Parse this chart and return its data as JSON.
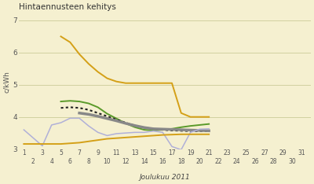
{
  "title": "Hintaennusteen kehitys",
  "xlabel": "Joulukuu 2011",
  "ylabel": "c/kWh",
  "background_color": "#f5f0d0",
  "ylim": [
    3.0,
    7.2
  ],
  "xlim": [
    0.5,
    32
  ],
  "yticks": [
    3,
    4,
    5,
    6,
    7
  ],
  "xticks_odd": [
    1,
    3,
    5,
    7,
    9,
    11,
    13,
    15,
    17,
    19,
    21,
    23,
    25,
    27,
    29,
    31
  ],
  "xticks_even": [
    2,
    4,
    6,
    8,
    10,
    12,
    14,
    16,
    18,
    20,
    22,
    24,
    26,
    28,
    30
  ],
  "lines": {
    "yellow_high": {
      "color": "#d4a017",
      "x": [
        5,
        6,
        7,
        8,
        9,
        10,
        11,
        12,
        13,
        14,
        15,
        16,
        17,
        18,
        19,
        20,
        21
      ],
      "y": [
        6.5,
        6.32,
        5.95,
        5.65,
        5.4,
        5.2,
        5.1,
        5.05,
        5.05,
        5.05,
        5.05,
        5.05,
        5.05,
        4.12,
        4.0,
        4.0,
        4.0
      ],
      "linewidth": 1.4
    },
    "green": {
      "color": "#5a9a2a",
      "x": [
        5,
        6,
        7,
        8,
        9,
        10,
        11,
        12,
        13,
        14,
        15,
        16,
        17,
        18,
        19,
        20,
        21
      ],
      "y": [
        4.48,
        4.5,
        4.48,
        4.42,
        4.3,
        4.1,
        3.95,
        3.8,
        3.68,
        3.6,
        3.58,
        3.6,
        3.63,
        3.68,
        3.72,
        3.75,
        3.78
      ],
      "linewidth": 1.4
    },
    "black_dotted": {
      "color": "#222222",
      "x": [
        5,
        6,
        7,
        8,
        9,
        10,
        11,
        12,
        13,
        14,
        15,
        16,
        17,
        18,
        19,
        20,
        21
      ],
      "y": [
        4.28,
        4.3,
        4.28,
        4.22,
        4.12,
        4.02,
        3.92,
        3.82,
        3.73,
        3.67,
        3.63,
        3.6,
        3.58,
        3.57,
        3.56,
        3.56,
        3.56
      ],
      "linewidth": 1.5,
      "linestyle": "dotted"
    },
    "gray": {
      "color": "#888888",
      "x": [
        7,
        8,
        9,
        10,
        11,
        12,
        13,
        14,
        15,
        16,
        17,
        18,
        19,
        20,
        21
      ],
      "y": [
        4.12,
        4.08,
        4.02,
        3.95,
        3.88,
        3.8,
        3.73,
        3.67,
        3.63,
        3.62,
        3.61,
        3.6,
        3.59,
        3.58,
        3.57
      ],
      "linewidth": 2.5
    },
    "purple": {
      "color": "#b0b0d8",
      "x": [
        1,
        2,
        3,
        4,
        5,
        6,
        7,
        8,
        9,
        10,
        11,
        12,
        13,
        14,
        15,
        16,
        17,
        18,
        19,
        20,
        21
      ],
      "y": [
        3.6,
        3.35,
        3.1,
        3.75,
        3.82,
        3.96,
        3.96,
        3.72,
        3.52,
        3.42,
        3.48,
        3.5,
        3.52,
        3.52,
        3.56,
        3.52,
        3.08,
        2.98,
        3.52,
        3.62,
        3.63
      ],
      "linewidth": 1.1
    },
    "yellow_low": {
      "color": "#d4a017",
      "x": [
        1,
        2,
        3,
        4,
        5,
        6,
        7,
        8,
        9,
        10,
        11,
        12,
        13,
        14,
        15,
        16,
        17,
        18,
        19,
        20,
        21
      ],
      "y": [
        3.16,
        3.16,
        3.16,
        3.16,
        3.16,
        3.18,
        3.2,
        3.24,
        3.28,
        3.32,
        3.34,
        3.36,
        3.38,
        3.4,
        3.42,
        3.44,
        3.45,
        3.46,
        3.46,
        3.46,
        3.46
      ],
      "linewidth": 1.4
    }
  }
}
